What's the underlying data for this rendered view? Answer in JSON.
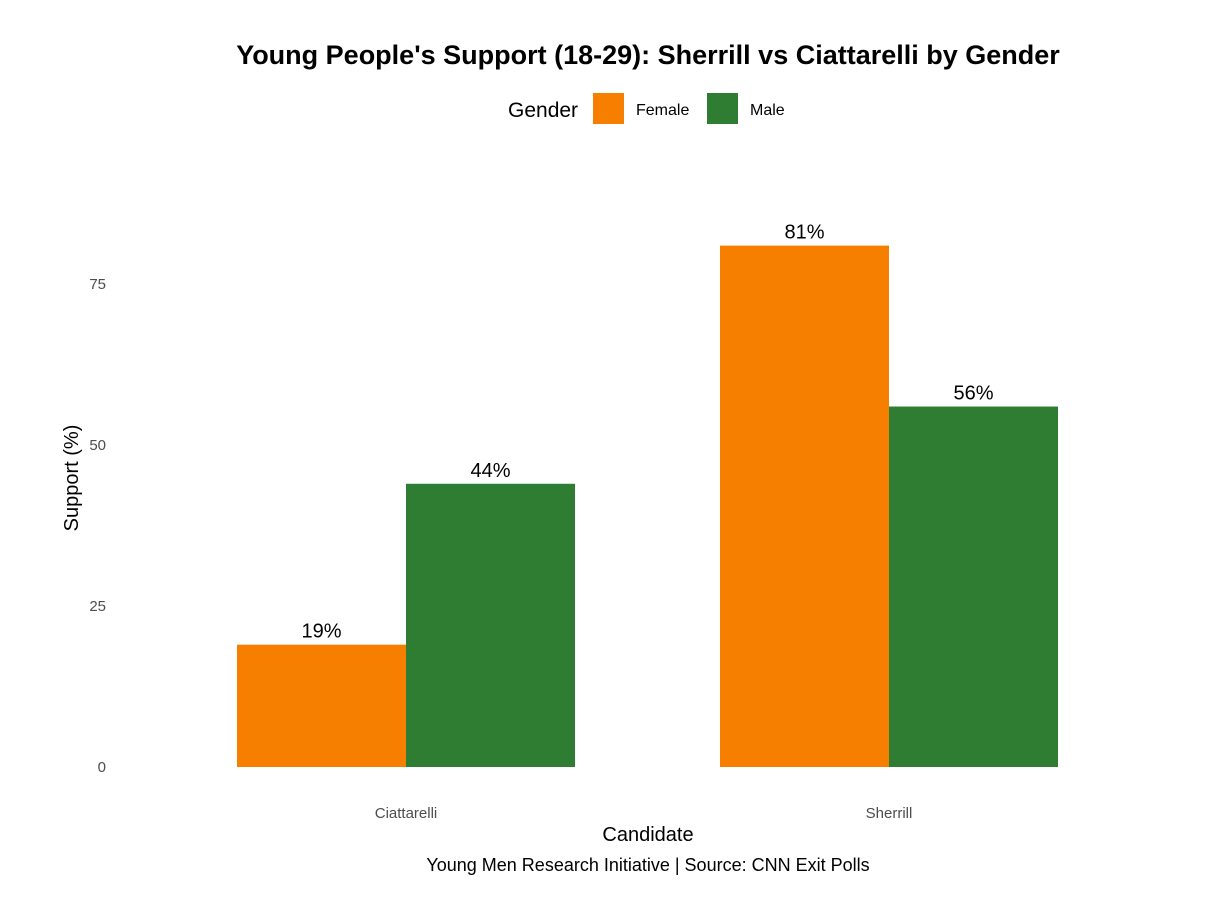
{
  "chart_data": {
    "type": "bar",
    "title": "Young People's Support (18-29): Sherrill vs Ciattarelli by Gender",
    "xlabel": "Candidate",
    "ylabel": "Support (%)",
    "caption": "Young Men Research Initiative | Source: CNN Exit Polls",
    "categories": [
      "Ciattarelli",
      "Sherrill"
    ],
    "legend": {
      "title": "Gender",
      "position": "top"
    },
    "series": [
      {
        "name": "Female",
        "color": "#F77F00",
        "values": [
          19,
          81
        ],
        "labels": [
          "19%",
          "81%"
        ]
      },
      {
        "name": "Male",
        "color": "#2E7D32",
        "values": [
          44,
          56
        ],
        "labels": [
          "44%",
          "56%"
        ]
      }
    ],
    "yticks": [
      0,
      25,
      50,
      75
    ],
    "ytick_labels": [
      "0",
      "25",
      "50",
      "75"
    ],
    "ylim": [
      0,
      85
    ],
    "grid": false
  }
}
